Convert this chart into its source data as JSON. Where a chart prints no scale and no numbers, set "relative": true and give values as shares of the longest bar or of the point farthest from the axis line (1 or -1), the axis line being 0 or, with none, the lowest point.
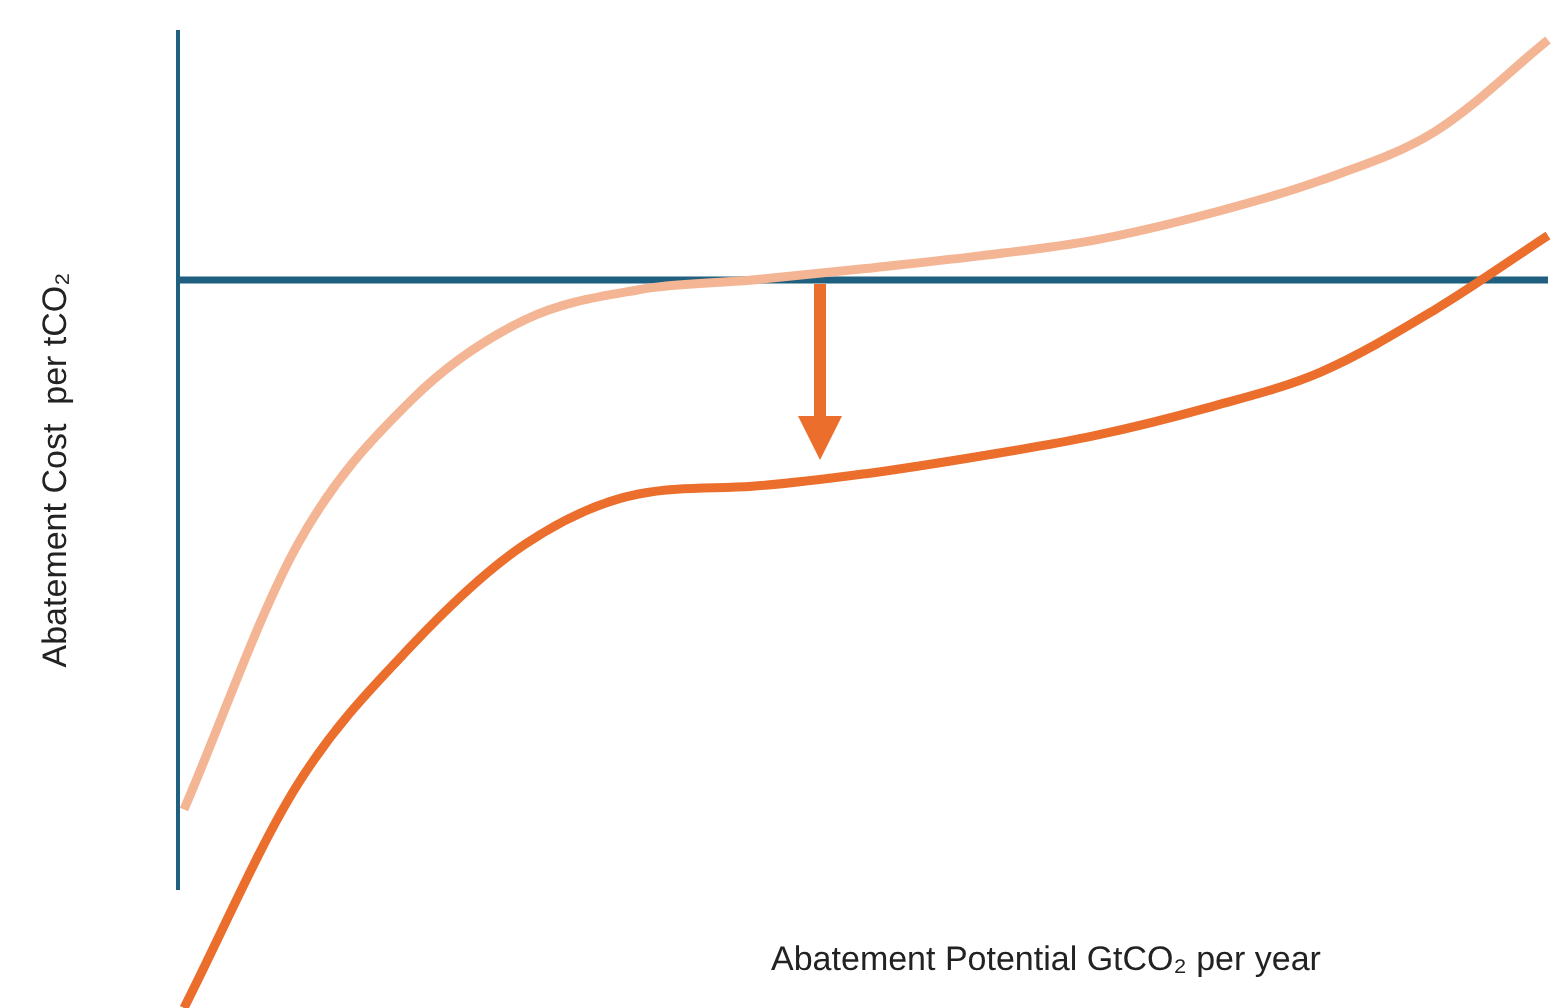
{
  "chart_data": {
    "type": "line",
    "relative": true,
    "xlabel": "Abatement Potential GtCO₂ per year",
    "ylabel": "Abatement Cost  per tCO₂",
    "categories": [
      null,
      null,
      null,
      null,
      null,
      null,
      null,
      null,
      null,
      null,
      null,
      null,
      null
    ],
    "series": [
      {
        "color": "#f4b594",
        "values": [
          0.205,
          0.479,
          0.628,
          0.711,
          0.742,
          0.752,
          0.764,
          0.777,
          0.793,
          0.82,
          0.855,
          0.905,
          1
        ]
      },
      {
        "color": "#eb6e2d",
        "values": [
          0,
          0.231,
          0.374,
          0.479,
          0.531,
          0.539,
          0.552,
          0.57,
          0.591,
          0.62,
          0.657,
          0.721,
          0.798
        ]
      }
    ],
    "ref_lines": [
      {
        "axis": "y",
        "value": 0.752,
        "color": "#1f5f7f"
      }
    ],
    "legend": false
  }
}
